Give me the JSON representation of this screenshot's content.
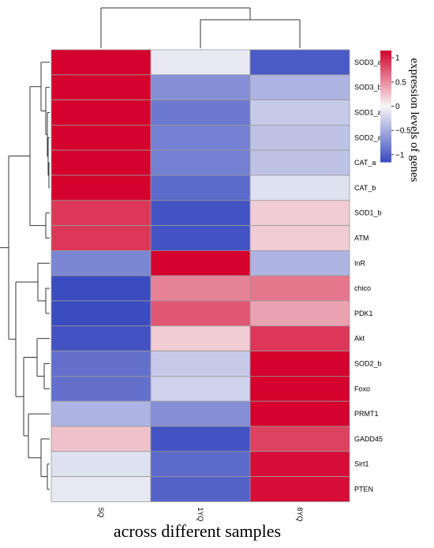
{
  "chart_data": {
    "type": "heatmap",
    "xlabel": "across different samples",
    "colorbar_label": "expression levels of genes",
    "columns": [
      "SQ",
      "1YQ",
      "8YQ"
    ],
    "rows": [
      "SOD3_a",
      "SOD3_b",
      "SOD1_a",
      "SOD2_a",
      "CAT_a",
      "CAT_b",
      "SOD1_b",
      "ATM",
      "InR",
      "chico",
      "PDK1",
      "Akt",
      "SOD2_b",
      "Foxo",
      "PRMT1",
      "GADD45",
      "Sirt1",
      "PTEN"
    ],
    "values": [
      [
        1.15,
        -0.1,
        -1.05
      ],
      [
        1.15,
        -0.7,
        -0.45
      ],
      [
        1.15,
        -0.85,
        -0.3
      ],
      [
        1.15,
        -0.8,
        -0.35
      ],
      [
        1.15,
        -0.8,
        -0.35
      ],
      [
        1.15,
        -0.95,
        -0.15
      ],
      [
        0.9,
        -1.1,
        0.2
      ],
      [
        0.9,
        -1.1,
        0.2
      ],
      [
        -0.75,
        1.15,
        -0.45
      ],
      [
        -1.15,
        0.55,
        0.6
      ],
      [
        -1.15,
        0.75,
        0.4
      ],
      [
        -1.1,
        0.2,
        0.9
      ],
      [
        -0.9,
        -0.3,
        1.15
      ],
      [
        -0.9,
        -0.25,
        1.15
      ],
      [
        -0.45,
        -0.7,
        1.15
      ],
      [
        0.25,
        -1.1,
        0.85
      ],
      [
        -0.15,
        -0.95,
        1.1
      ],
      [
        -0.1,
        -1.0,
        1.1
      ]
    ],
    "colorscale": {
      "low": "#3b4cc0",
      "mid": "#f7f7f7",
      "high": "#d4022c"
    },
    "colorbar_ticks": [
      1,
      0.5,
      0,
      -0.5,
      -1
    ],
    "colorbar_tick_labels": [
      "1",
      "0.5",
      "0",
      "−0.5",
      "−1"
    ],
    "vmin": -1.15,
    "vmax": 1.15,
    "row_dendrogram": true,
    "column_dendrogram": true
  }
}
